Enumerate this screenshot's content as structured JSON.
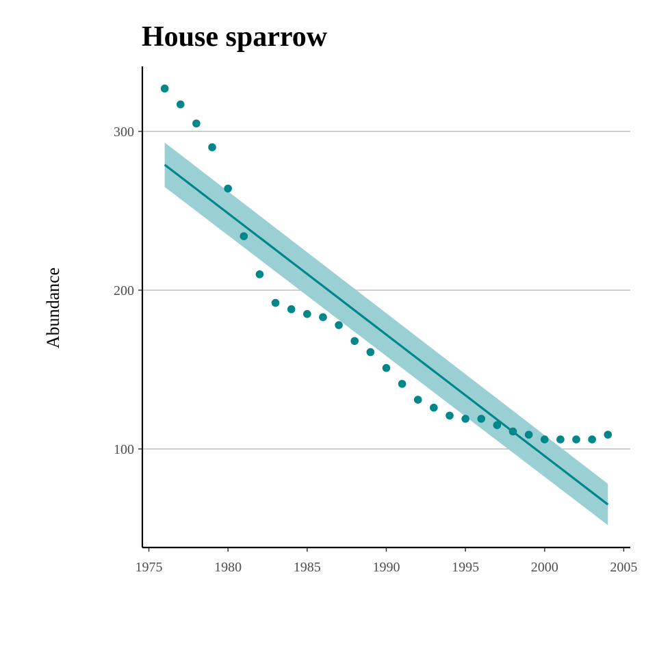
{
  "chart_data": {
    "type": "scatter",
    "title": "House sparrow",
    "xlabel": "",
    "ylabel": "Abundance",
    "xlim": [
      1975,
      2005
    ],
    "ylim": [
      40,
      345
    ],
    "x_ticks": [
      1975,
      1980,
      1985,
      1990,
      1995,
      2000,
      2005
    ],
    "y_ticks": [
      100,
      200,
      300
    ],
    "grid": "horizontal major",
    "colors": {
      "points": "#00868b",
      "trend": "#00868b",
      "ribbon": "#9ad0d3",
      "grid": "#bdbdbd",
      "axis": "#000000"
    },
    "series": [
      {
        "type": "scatter",
        "x": [
          1976,
          1977,
          1978,
          1979,
          1980,
          1981,
          1982,
          1983,
          1984,
          1985,
          1986,
          1987,
          1988,
          1989,
          1990,
          1991,
          1992,
          1993,
          1994,
          1995,
          1996,
          1997,
          1998,
          1999,
          2000,
          2001,
          2002,
          2003,
          2004
        ],
        "y": [
          327,
          317,
          305,
          290,
          264,
          234,
          210,
          192,
          188,
          185,
          183,
          178,
          168,
          161,
          151,
          141,
          131,
          126,
          121,
          119,
          119,
          115,
          111,
          109,
          106,
          106,
          106,
          106,
          109
        ]
      },
      {
        "type": "line",
        "x": [
          1976,
          2004
        ],
        "y": [
          279,
          65
        ],
        "ribbon_lower": [
          265,
          52
        ],
        "ribbon_upper": [
          293,
          78
        ]
      }
    ]
  }
}
